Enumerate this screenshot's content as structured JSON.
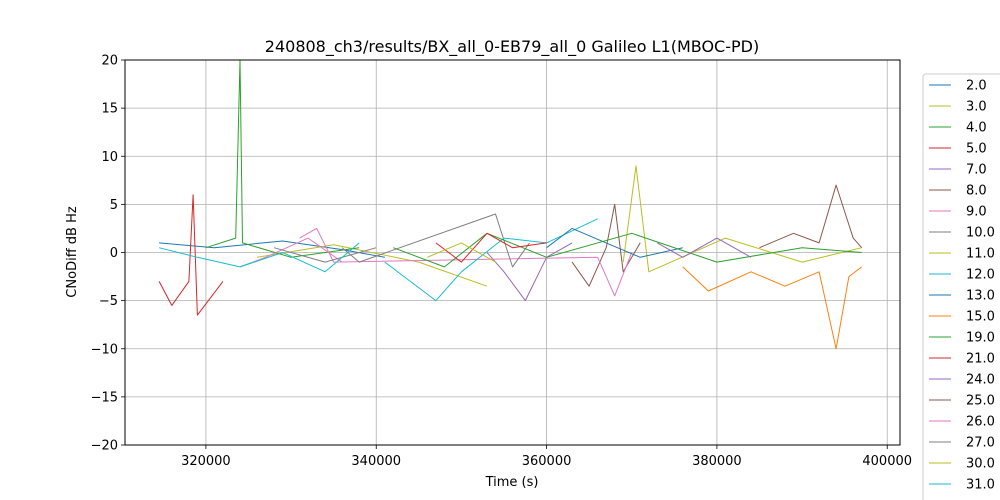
{
  "chart_data": {
    "type": "line",
    "title": "240808_ch3/results/BX_all_0-EB79_all_0 Galileo L1(MBOC-PD)",
    "xlabel": "Time (s)",
    "ylabel": "CNoDiff dB Hz",
    "xlim": [
      310500,
      401500
    ],
    "ylim": [
      -20,
      20
    ],
    "x_ticks": [
      320000,
      340000,
      360000,
      380000,
      400000
    ],
    "x_tick_labels": [
      "320000",
      "340000",
      "360000",
      "380000",
      "400000"
    ],
    "y_ticks": [
      -20,
      -15,
      -10,
      -5,
      0,
      5,
      10,
      15,
      20
    ],
    "y_tick_labels": [
      "−20",
      "−15",
      "−10",
      "−5",
      "0",
      "5",
      "10",
      "15",
      "20"
    ],
    "grid": true,
    "legend_placement": "right-outside",
    "series": [
      {
        "name": "2.0",
        "color": "#1f77b4",
        "points": [
          [
            314500,
            1.0
          ],
          [
            321000,
            0.5
          ],
          [
            329000,
            1.2
          ],
          [
            336000,
            0.3
          ],
          [
            341000,
            -0.5
          ]
        ]
      },
      {
        "name": "3.0",
        "color": "#bcbd22",
        "points": [
          [
            326000,
            -0.5
          ],
          [
            335000,
            0.8
          ],
          [
            345000,
            -1.0
          ],
          [
            353000,
            -3.5
          ]
        ]
      },
      {
        "name": "4.0",
        "color": "#2ca02c",
        "points": [
          [
            320000,
            0.5
          ],
          [
            323500,
            1.5
          ],
          [
            324000,
            20.0
          ],
          [
            324300,
            1.0
          ],
          [
            330000,
            -0.5
          ],
          [
            338000,
            0.5
          ]
        ]
      },
      {
        "name": "5.0",
        "color": "#d62728",
        "points": [
          [
            314500,
            -3.0
          ],
          [
            316000,
            -5.5
          ],
          [
            318000,
            -3.0
          ],
          [
            318500,
            6.0
          ],
          [
            319000,
            -6.5
          ],
          [
            322000,
            -3.0
          ]
        ]
      },
      {
        "name": "7.0",
        "color": "#9467bd",
        "points": [
          [
            353000,
            0.0
          ],
          [
            355000,
            -2.0
          ],
          [
            357500,
            -5.0
          ],
          [
            360000,
            -0.5
          ],
          [
            363000,
            1.0
          ]
        ]
      },
      {
        "name": "8.0",
        "color": "#8c564b",
        "points": [
          [
            363000,
            -1.0
          ],
          [
            365000,
            -3.5
          ],
          [
            367000,
            0.5
          ],
          [
            368000,
            5.0
          ],
          [
            369000,
            -2.0
          ],
          [
            371000,
            1.0
          ]
        ]
      },
      {
        "name": "9.0",
        "color": "#e377c2",
        "points": [
          [
            331000,
            1.5
          ],
          [
            333000,
            2.5
          ],
          [
            335000,
            -1.0
          ],
          [
            366000,
            -0.5
          ],
          [
            368000,
            -4.5
          ],
          [
            370000,
            0.0
          ]
        ]
      },
      {
        "name": "10.0",
        "color": "#7f7f7f",
        "points": [
          [
            336000,
            0.5
          ],
          [
            338000,
            -1.0
          ],
          [
            354000,
            4.0
          ],
          [
            356000,
            -1.5
          ],
          [
            358000,
            1.0
          ]
        ]
      },
      {
        "name": "11.0",
        "color": "#bcbd22",
        "points": [
          [
            369000,
            -1.0
          ],
          [
            370500,
            9.0
          ],
          [
            372000,
            -2.0
          ],
          [
            381000,
            1.5
          ],
          [
            390000,
            -1.0
          ],
          [
            397000,
            0.5
          ]
        ]
      },
      {
        "name": "12.0",
        "color": "#17becf",
        "points": [
          [
            341000,
            -1.0
          ],
          [
            347000,
            -5.0
          ],
          [
            350000,
            -2.0
          ],
          [
            355000,
            1.5
          ],
          [
            360000,
            1.0
          ],
          [
            366000,
            3.5
          ]
        ]
      },
      {
        "name": "13.0",
        "color": "#1f77b4",
        "points": [
          [
            360000,
            0.5
          ],
          [
            363000,
            2.5
          ],
          [
            367000,
            1.0
          ],
          [
            371000,
            -0.5
          ],
          [
            376000,
            0.5
          ]
        ]
      },
      {
        "name": "15.0",
        "color": "#ff7f0e",
        "points": [
          [
            376000,
            -1.5
          ],
          [
            379000,
            -4.0
          ],
          [
            384000,
            -2.0
          ],
          [
            388000,
            -3.5
          ],
          [
            392000,
            -2.0
          ],
          [
            394000,
            -10.0
          ],
          [
            395500,
            -2.5
          ],
          [
            397000,
            -1.5
          ]
        ]
      },
      {
        "name": "19.0",
        "color": "#2ca02c",
        "points": [
          [
            342000,
            0.5
          ],
          [
            348000,
            -1.5
          ],
          [
            353000,
            2.0
          ],
          [
            360000,
            -0.5
          ],
          [
            370000,
            2.0
          ],
          [
            380000,
            -1.0
          ],
          [
            390000,
            0.5
          ],
          [
            397000,
            0.0
          ]
        ]
      },
      {
        "name": "21.0",
        "color": "#d62728",
        "points": [
          [
            347000,
            1.0
          ],
          [
            350000,
            -1.0
          ],
          [
            353000,
            2.0
          ],
          [
            356000,
            0.5
          ],
          [
            360000,
            1.0
          ]
        ]
      },
      {
        "name": "24.0",
        "color": "#9467bd",
        "points": [
          [
            373000,
            1.0
          ],
          [
            376000,
            -0.5
          ],
          [
            380000,
            1.5
          ],
          [
            384000,
            -0.5
          ]
        ]
      },
      {
        "name": "25.0",
        "color": "#8c564b",
        "points": [
          [
            385000,
            0.5
          ],
          [
            389000,
            2.0
          ],
          [
            392000,
            1.0
          ],
          [
            394000,
            7.0
          ],
          [
            396000,
            1.5
          ],
          [
            397000,
            0.5
          ]
        ]
      },
      {
        "name": "26.0",
        "color": "#e377c2",
        "points": [
          [
            324000,
            -1.5
          ],
          [
            327000,
            -0.5
          ],
          [
            332000,
            1.5
          ],
          [
            336000,
            -1.0
          ]
        ]
      },
      {
        "name": "27.0",
        "color": "#7f7f7f",
        "points": [
          [
            328000,
            0.5
          ],
          [
            334000,
            -1.0
          ],
          [
            340000,
            0.5
          ]
        ]
      },
      {
        "name": "30.0",
        "color": "#bcbd22",
        "points": [
          [
            346000,
            -0.5
          ],
          [
            350000,
            1.0
          ],
          [
            354000,
            -1.0
          ]
        ]
      },
      {
        "name": "31.0",
        "color": "#17becf",
        "points": [
          [
            314500,
            0.5
          ],
          [
            319000,
            -0.5
          ],
          [
            324000,
            -1.5
          ],
          [
            329000,
            0.0
          ],
          [
            334000,
            -2.0
          ],
          [
            338000,
            1.0
          ]
        ]
      }
    ]
  }
}
